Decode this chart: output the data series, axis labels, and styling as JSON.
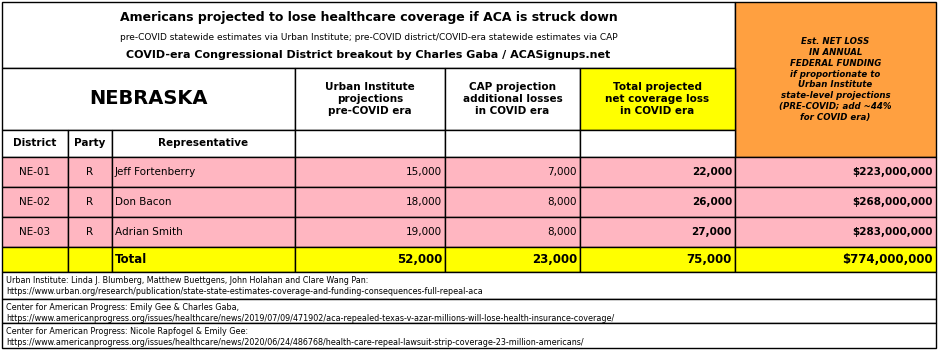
{
  "title_line1": "Americans projected to lose healthcare coverage if ACA is struck down",
  "title_line2": "pre-COVID statewide estimates via Urban Institute; pre-COVID district/COVID-era statewide estimates via CAP",
  "title_line3": "COVID-era Congressional District breakout by Charles Gaba / ACASignups.net",
  "state": "NEBRASKA",
  "footnotes": [
    "Urban Institute: Linda J. Blumberg, Matthew Buettgens, John Holahan and Clare Wang Pan:\nhttps://www.urban.org/research/publication/state-state-estimates-coverage-and-funding-consequences-full-repeal-aca",
    "Center for American Progress: Emily Gee & Charles Gaba,\nhttps://www.americanprogress.org/issues/healthcare/news/2019/07/09/471902/aca-repealed-texas-v-azar-millions-will-lose-health-insurance-coverage/",
    "Center for American Progress: Nicole Rapfogel & Emily Gee:\nhttps://www.americanprogress.org/issues/healthcare/news/2020/06/24/486768/health-care-repeal-lawsuit-strip-coverage-23-million-americans/"
  ],
  "rows": [
    [
      "NE-01",
      "R",
      "Jeff Fortenberry",
      "15,000",
      "7,000",
      "22,000",
      "$223,000,000"
    ],
    [
      "NE-02",
      "R",
      "Don Bacon",
      "18,000",
      "8,000",
      "26,000",
      "$268,000,000"
    ],
    [
      "NE-03",
      "R",
      "Adrian Smith",
      "19,000",
      "8,000",
      "27,000",
      "$283,000,000"
    ]
  ],
  "total_row": [
    "",
    "",
    "Total",
    "52,000",
    "23,000",
    "75,000",
    "$774,000,000"
  ],
  "orange_header": "Est. NET LOSS\nIN ANNUAL\nFEDERAL FUNDING\nif proportionate to\nUrban Institute\nstate-level projections\n(PRE-COVID; add ~44%\nfor COVID era)",
  "orange_color": "#FFA040",
  "yellow_color": "#FFFF00",
  "pink_color": "#FFB6C1",
  "white_color": "#FFFFFF",
  "figsize": [
    9.38,
    3.5
  ],
  "dpi": 100
}
